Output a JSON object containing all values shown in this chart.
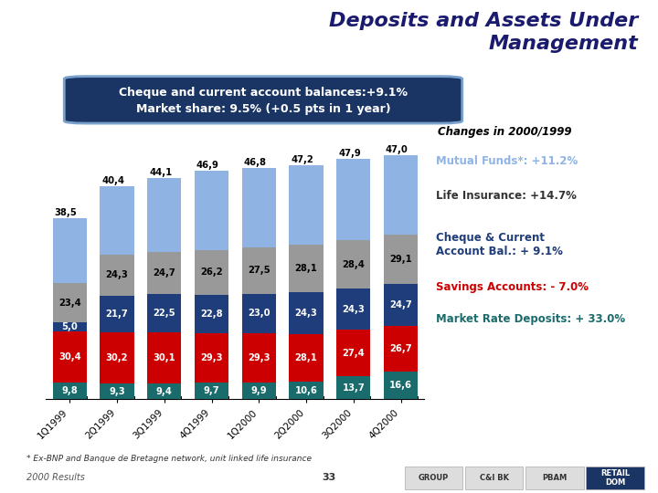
{
  "title": "Deposits and Assets Under\nManagement",
  "subtitle_line1": "Cheque and current account balances:+9.1%",
  "subtitle_line2": "Market share: 9.5% (+0.5 pts in 1 year)",
  "categories": [
    "1Q1999",
    "2Q1999",
    "3Q1999",
    "4Q1999",
    "1Q2000",
    "2Q2000",
    "3Q2000",
    "4Q2000"
  ],
  "market_rate": [
    9.8,
    9.3,
    9.4,
    9.7,
    9.9,
    10.6,
    13.7,
    16.6
  ],
  "savings": [
    30.4,
    30.2,
    30.1,
    29.3,
    29.3,
    28.1,
    27.4,
    26.7
  ],
  "cheque": [
    5.0,
    21.7,
    22.5,
    22.8,
    23.0,
    24.3,
    24.3,
    24.7
  ],
  "life_ins": [
    23.4,
    24.3,
    24.7,
    26.2,
    27.5,
    28.1,
    28.4,
    29.1
  ],
  "mutual": [
    38.5,
    40.4,
    44.1,
    46.9,
    46.8,
    47.2,
    47.9,
    47.0
  ],
  "color_mutual": "#8FB4E3",
  "color_life": "#999999",
  "color_cheque": "#1F3D7A",
  "color_savings": "#CC0000",
  "color_market": "#1A6B6B",
  "footer_left": "2000 Results",
  "footer_center": "33",
  "footer_note": "* Ex-BNP and Banque de Bretagne network, unit linked life insurance",
  "changes_label": "Changes in 2000/1999",
  "bg_color": "#FFFFFF"
}
